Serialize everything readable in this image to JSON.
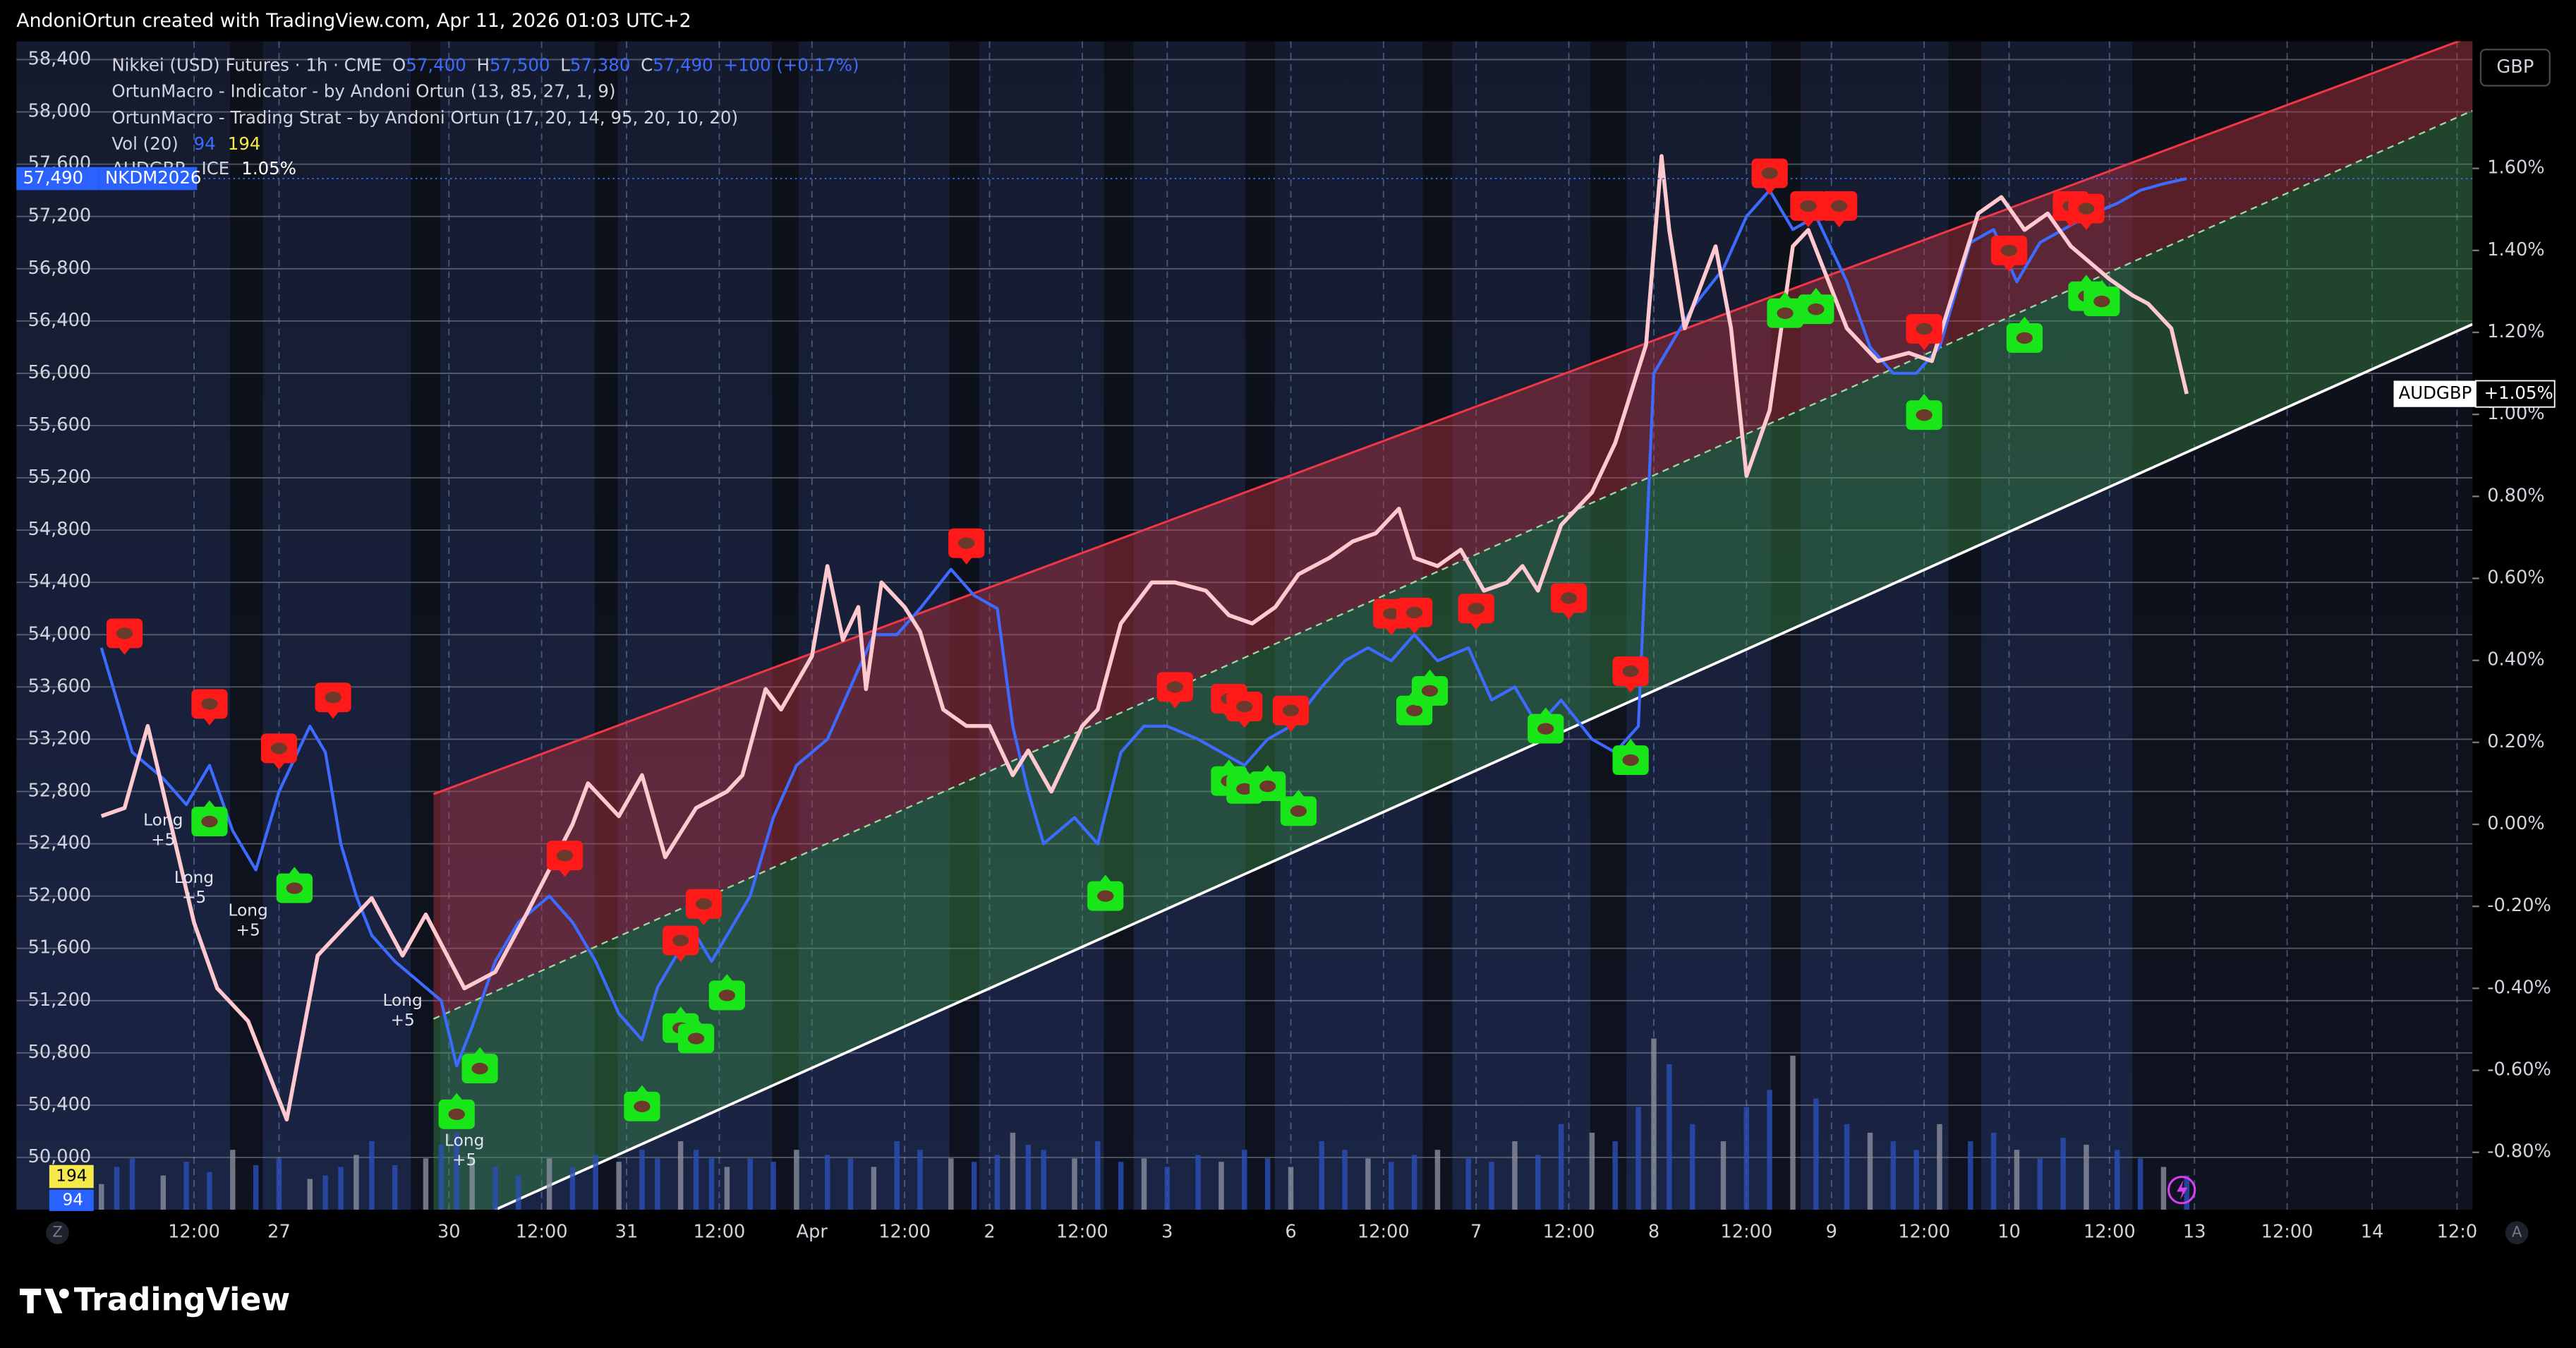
{
  "header": {
    "text": "AndoniOrtun created with TradingView.com, Apr 11, 2026 01:03 UTC+2"
  },
  "footer": {
    "logo": "TradingView",
    "left_button": "Z",
    "right_button": "A"
  },
  "legend": {
    "symbol": "Nikkei (USD) Futures · 1h · CME",
    "ohlc": [
      "O",
      "57,400",
      "H",
      "57,500",
      "L",
      "57,380",
      "C",
      "57,490",
      "+100 (+0.17%)"
    ],
    "indicator": "OrtunMacro - Indicator - by Andoni Ortun (13, 85, 27, 1, 9)",
    "strategy": "OrtunMacro - Trading Strat - by Andoni Ortun (17, 20, 14, 95, 20, 10, 20)",
    "compare": "AUDGBP · ICE",
    "compare_value": "1.05%"
  },
  "chart_data": {
    "type": "line",
    "currency": "GBP",
    "price_tag": {
      "value": 57490,
      "label": "57,490",
      "symbol": "NKDM2026"
    },
    "compare_tag": {
      "name": "AUDGBP",
      "label": "+1.05%"
    },
    "xlim": [
      -10,
      308
    ],
    "xticks": [
      {
        "value": 13,
        "label": "12:00"
      },
      {
        "value": 24,
        "label": "27"
      },
      {
        "value": 46,
        "label": "30"
      },
      {
        "value": 58,
        "label": "12:00"
      },
      {
        "value": 69,
        "label": "31"
      },
      {
        "value": 81,
        "label": "12:00"
      },
      {
        "value": 93,
        "label": "Apr"
      },
      {
        "value": 105,
        "label": "12:00"
      },
      {
        "value": 116,
        "label": "2"
      },
      {
        "value": 128,
        "label": "12:00"
      },
      {
        "value": 139,
        "label": "3"
      },
      {
        "value": 155,
        "label": "6"
      },
      {
        "value": 167,
        "label": "12:00"
      },
      {
        "value": 179,
        "label": "7"
      },
      {
        "value": 191,
        "label": "12:00"
      },
      {
        "value": 202,
        "label": "8"
      },
      {
        "value": 214,
        "label": "12:00"
      },
      {
        "value": 225,
        "label": "9"
      },
      {
        "value": 237,
        "label": "12:00"
      },
      {
        "value": 248,
        "label": "10"
      },
      {
        "value": 261,
        "label": "12:00"
      },
      {
        "value": 272,
        "label": "13"
      },
      {
        "value": 284,
        "label": "12:00"
      },
      {
        "value": 295,
        "label": "14"
      },
      {
        "value": 306,
        "label": "12:0"
      }
    ],
    "ylim": [
      49600,
      58540
    ],
    "yticks": [
      {
        "value": 50000,
        "label": "50,000"
      },
      {
        "value": 50400,
        "label": "50,400"
      },
      {
        "value": 50800,
        "label": "50,800"
      },
      {
        "value": 51200,
        "label": "51,200"
      },
      {
        "value": 51600,
        "label": "51,600"
      },
      {
        "value": 52000,
        "label": "52,000"
      },
      {
        "value": 52400,
        "label": "52,400"
      },
      {
        "value": 52800,
        "label": "52,800"
      },
      {
        "value": 53200,
        "label": "53,200"
      },
      {
        "value": 53600,
        "label": "53,600"
      },
      {
        "value": 54000,
        "label": "54,000"
      },
      {
        "value": 54400,
        "label": "54,400"
      },
      {
        "value": 54800,
        "label": "54,800"
      },
      {
        "value": 55200,
        "label": "55,200"
      },
      {
        "value": 55600,
        "label": "55,600"
      },
      {
        "value": 56000,
        "label": "56,000"
      },
      {
        "value": 56400,
        "label": "56,400"
      },
      {
        "value": 56800,
        "label": "56,800"
      },
      {
        "value": 57200,
        "label": "57,200"
      },
      {
        "value": 57600,
        "label": "57,600"
      },
      {
        "value": 58000,
        "label": "58,000"
      },
      {
        "value": 58400,
        "label": "58,400"
      }
    ],
    "y2lim": [
      -0.94,
      1.91
    ],
    "y2ticks": [
      {
        "value": 1.6,
        "label": "1.60%"
      },
      {
        "value": 1.4,
        "label": "1.40%"
      },
      {
        "value": 1.2,
        "label": "1.20%"
      },
      {
        "value": 1.0,
        "label": "1.00%"
      },
      {
        "value": 0.8,
        "label": "0.80%"
      },
      {
        "value": 0.6,
        "label": "0.60%"
      },
      {
        "value": 0.4,
        "label": "0.40%"
      },
      {
        "value": 0.2,
        "label": "0.20%"
      },
      {
        "value": 0,
        "label": "0.00%"
      },
      {
        "value": -0.2,
        "label": "-0.20%"
      },
      {
        "value": -0.4,
        "label": "-0.40%"
      },
      {
        "value": -0.6,
        "label": "-0.60%"
      },
      {
        "value": -0.8,
        "label": "-0.80%"
      }
    ],
    "grid": true,
    "series": [
      {
        "name": "Nikkei (USD) Futures",
        "color": "#3d6bff",
        "x": [
          1,
          3,
          5,
          9,
          12,
          15,
          18,
          21,
          24,
          28,
          30,
          32,
          34,
          36,
          39,
          43,
          45,
          47,
          49,
          52,
          55,
          59,
          62,
          65,
          68,
          71,
          73,
          76,
          78,
          80,
          82,
          85,
          88,
          91,
          95,
          98,
          101,
          104,
          107,
          111,
          114,
          117,
          119,
          121,
          123,
          127,
          130,
          133,
          136,
          139,
          143,
          146,
          149,
          152,
          155,
          159,
          162,
          165,
          168,
          171,
          174,
          178,
          181,
          184,
          187,
          190,
          194,
          197,
          200,
          202,
          204,
          207,
          211,
          214,
          217,
          220,
          223,
          227,
          230,
          233,
          236,
          239,
          243,
          246,
          249,
          252,
          255,
          258,
          262,
          265,
          268,
          271
        ],
        "values": [
          53900,
          53500,
          53100,
          52900,
          52700,
          53000,
          52500,
          52200,
          52800,
          53300,
          53100,
          52400,
          52000,
          51700,
          51500,
          51300,
          51200,
          50700,
          51000,
          51500,
          51800,
          52000,
          51800,
          51500,
          51100,
          50900,
          51300,
          51600,
          51700,
          51500,
          51700,
          52000,
          52600,
          53000,
          53200,
          53600,
          54000,
          54000,
          54200,
          54500,
          54300,
          54200,
          53300,
          52800,
          52400,
          52600,
          52400,
          53100,
          53300,
          53300,
          53200,
          53100,
          53000,
          53200,
          53300,
          53600,
          53800,
          53900,
          53800,
          54000,
          53800,
          53900,
          53500,
          53600,
          53300,
          53500,
          53200,
          53100,
          53300,
          56000,
          56200,
          56500,
          56800,
          57200,
          57400,
          57100,
          57200,
          56700,
          56200,
          56000,
          56000,
          56200,
          57000,
          57100,
          56700,
          57000,
          57100,
          57200,
          57300,
          57400,
          57450,
          57490
        ]
      },
      {
        "name": "AUDGBP",
        "color": "#ffc9cf",
        "axis": "y2",
        "x": [
          1,
          4,
          7,
          13,
          16,
          20,
          25,
          29,
          33,
          36,
          40,
          43,
          48,
          52,
          56,
          62,
          64,
          68,
          71,
          74,
          78,
          82,
          84,
          87,
          89,
          93,
          95,
          97,
          99,
          100,
          102,
          105,
          107,
          110,
          113,
          116,
          119,
          121,
          124,
          128,
          130,
          133,
          137,
          140,
          144,
          147,
          150,
          153,
          156,
          160,
          163,
          166,
          169,
          171,
          174,
          177,
          180,
          183,
          185,
          187,
          190,
          194,
          197,
          201,
          203,
          204,
          206,
          210,
          212,
          214,
          217,
          220,
          222,
          227,
          231,
          235,
          238,
          241,
          244,
          247,
          250,
          253,
          256,
          261,
          264,
          266,
          269,
          271
        ],
        "values": [
          0.02,
          0.04,
          0.24,
          -0.24,
          -0.4,
          -0.48,
          -0.72,
          -0.32,
          -0.24,
          -0.18,
          -0.32,
          -0.22,
          -0.4,
          -0.36,
          -0.22,
          0,
          0.1,
          0.02,
          0.12,
          -0.08,
          0.04,
          0.08,
          0.12,
          0.33,
          0.28,
          0.41,
          0.63,
          0.45,
          0.53,
          0.33,
          0.59,
          0.53,
          0.47,
          0.28,
          0.24,
          0.24,
          0.12,
          0.18,
          0.08,
          0.24,
          0.28,
          0.49,
          0.59,
          0.59,
          0.57,
          0.51,
          0.49,
          0.53,
          0.61,
          0.65,
          0.69,
          0.71,
          0.77,
          0.65,
          0.63,
          0.67,
          0.57,
          0.59,
          0.63,
          0.57,
          0.73,
          0.81,
          0.93,
          1.17,
          1.63,
          1.45,
          1.21,
          1.41,
          1.21,
          0.85,
          1.01,
          1.41,
          1.45,
          1.21,
          1.13,
          1.15,
          1.13,
          1.31,
          1.49,
          1.53,
          1.45,
          1.49,
          1.41,
          1.33,
          1.29,
          1.27,
          1.21,
          1.05
        ]
      }
    ],
    "volume": {
      "name": "Vol (20)",
      "color": "#2a4fb8",
      "ylim": [
        0,
        1200
      ],
      "ma": 194,
      "last": 94,
      "values": [
        150,
        250,
        300,
        200,
        280,
        220,
        350,
        260,
        300,
        180,
        200,
        250,
        320,
        400,
        260,
        300,
        380,
        450,
        300,
        250,
        200,
        300,
        250,
        320,
        280,
        350,
        300,
        400,
        350,
        300,
        250,
        300,
        280,
        350,
        320,
        300,
        250,
        400,
        350,
        300,
        280,
        320,
        450,
        380,
        350,
        300,
        400,
        280,
        300,
        250,
        320,
        280,
        350,
        300,
        250,
        400,
        350,
        300,
        280,
        320,
        350,
        300,
        280,
        400,
        320,
        500,
        450,
        400,
        600,
        1000,
        850,
        500,
        400,
        600,
        700,
        900,
        650,
        500,
        450,
        400,
        350,
        500,
        400,
        450,
        350,
        300,
        420,
        380,
        350,
        300,
        250,
        200
      ]
    },
    "channel": {
      "upper": [
        [
          44,
          52780
        ],
        [
          308,
          58580
        ]
      ],
      "middle": [
        [
          44,
          51060
        ],
        [
          308,
          58010
        ]
      ],
      "lower": [
        [
          52,
          49600
        ],
        [
          308,
          56375
        ]
      ]
    },
    "signals": {
      "bear": [
        [
          4,
          54010
        ],
        [
          15,
          53470
        ],
        [
          24,
          53130
        ],
        [
          31,
          53520
        ],
        [
          61,
          52310
        ],
        [
          76,
          51660
        ],
        [
          79,
          51940
        ],
        [
          113,
          54700
        ],
        [
          140,
          53600
        ],
        [
          147,
          53510
        ],
        [
          149,
          53450
        ],
        [
          155,
          53420
        ],
        [
          168,
          54160
        ],
        [
          171,
          54170
        ],
        [
          179,
          54200
        ],
        [
          191,
          54280
        ],
        [
          199,
          53720
        ],
        [
          217,
          57530
        ],
        [
          222,
          57280
        ],
        [
          226,
          57280
        ],
        [
          237,
          56340
        ],
        [
          248,
          56940
        ],
        [
          256,
          57280
        ],
        [
          258,
          57260
        ]
      ],
      "bull": [
        [
          15,
          52570
        ],
        [
          26,
          52060
        ],
        [
          47,
          50330
        ],
        [
          50,
          50680
        ],
        [
          71,
          50390
        ],
        [
          76,
          50990
        ],
        [
          78,
          50910
        ],
        [
          82,
          51240
        ],
        [
          131,
          52000
        ],
        [
          147,
          52880
        ],
        [
          149,
          52820
        ],
        [
          152,
          52840
        ],
        [
          156,
          52650
        ],
        [
          171,
          53420
        ],
        [
          173,
          53570
        ],
        [
          188,
          53280
        ],
        [
          199,
          53040
        ],
        [
          219,
          56460
        ],
        [
          223,
          56490
        ],
        [
          237,
          55680
        ],
        [
          250,
          56270
        ],
        [
          258,
          56590
        ],
        [
          260,
          56550
        ]
      ]
    },
    "annotations": [
      {
        "text": "Long",
        "qty": "+5",
        "x": 9,
        "y": 52500
      },
      {
        "text": "Long",
        "qty": "+5",
        "x": 13,
        "y": 52060
      },
      {
        "text": "Long",
        "qty": "+5",
        "x": 20,
        "y": 51810
      },
      {
        "text": "Long",
        "qty": "+5",
        "x": 40,
        "y": 51120
      },
      {
        "text": "Long",
        "qty": "+5",
        "x": 48,
        "y": 50050
      }
    ]
  }
}
